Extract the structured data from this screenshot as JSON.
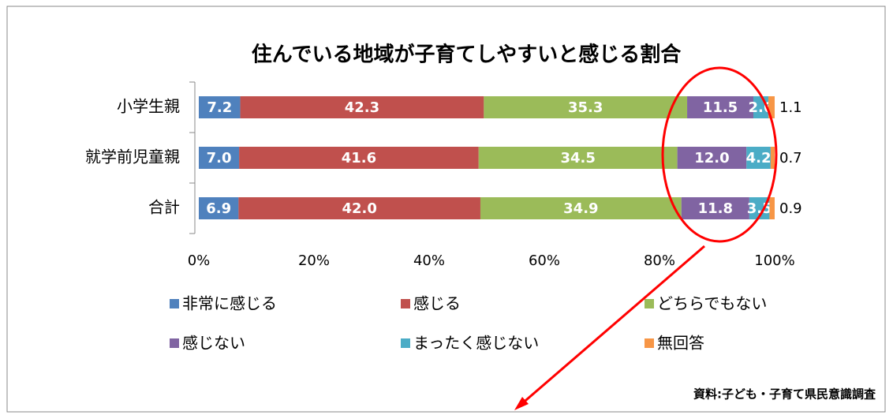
{
  "chart_data": {
    "type": "stacked-bar-horizontal",
    "title": "住んでいる地域が子育てしやすいと感じる割合",
    "source": "資料:子ども・子育て県民意識調査",
    "categories": [
      "小学生親",
      "就学前児童親",
      "合計"
    ],
    "series": [
      {
        "name": "非常に感じる",
        "color": "#4F81BD",
        "values": [
          7.2,
          7.0,
          6.9
        ],
        "value_labels": [
          "7.2",
          "7.0",
          "6.9"
        ]
      },
      {
        "name": "感じる",
        "color": "#C0504D",
        "values": [
          42.3,
          41.6,
          42.0
        ],
        "value_labels": [
          "42.3",
          "41.6",
          "42.0"
        ]
      },
      {
        "name": "どちらでもない",
        "color": "#9BBB59",
        "values": [
          35.3,
          34.5,
          34.9
        ]
      },
      {
        "name": "感じない",
        "color": "#8064A2",
        "values": [
          11.5,
          12.0,
          11.8
        ],
        "value_labels": [
          "11.5",
          "12.0",
          "11.8"
        ]
      },
      {
        "name": "まったく感じない",
        "color": "#4BACC6",
        "values": [
          2.6,
          4.2,
          3.5
        ]
      },
      {
        "name": "無回答",
        "color": "#F79646",
        "values": [
          1.1,
          0.7,
          0.9
        ]
      }
    ],
    "xlim": [
      0,
      100
    ],
    "xticks": [
      {
        "value": 0,
        "label": "0%"
      },
      {
        "value": 20,
        "label": "20%"
      },
      {
        "value": 40,
        "label": "40%"
      },
      {
        "value": 60,
        "label": "60%"
      },
      {
        "value": 80,
        "label": "80%"
      },
      {
        "value": 100,
        "label": "100%"
      }
    ]
  }
}
